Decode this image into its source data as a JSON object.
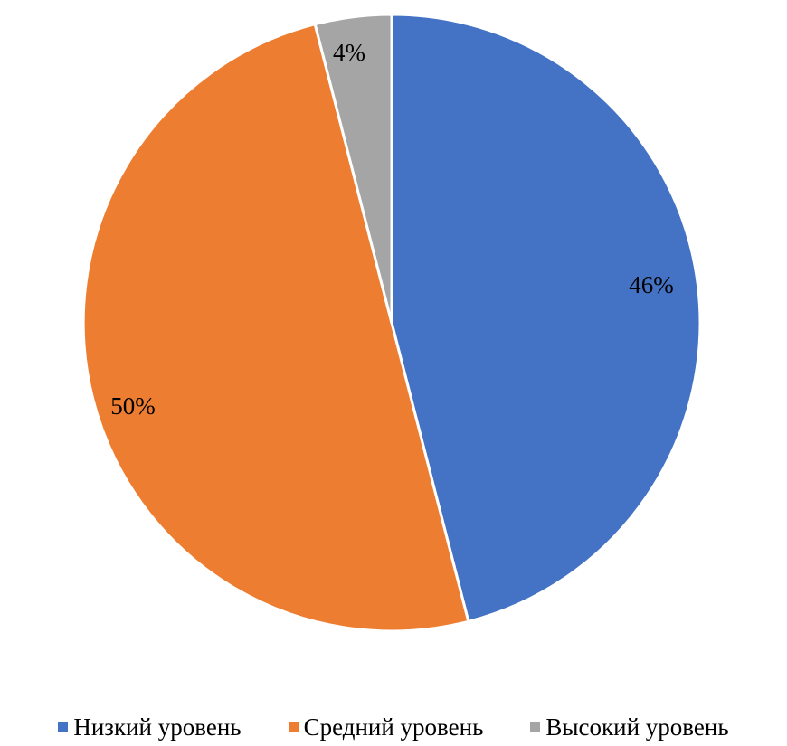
{
  "chart_data": {
    "type": "pie",
    "title": "",
    "categories": [
      "Низкий уровень",
      "Средний уровень",
      "Высокий уровень"
    ],
    "values": [
      46,
      50,
      4
    ],
    "labels": [
      "46%",
      "50%",
      "4%"
    ],
    "colors": [
      "#4472C4",
      "#ED7D31",
      "#A5A5A5"
    ],
    "start_angle": "12 o'clock",
    "direction": "clockwise",
    "legend": "bottom"
  }
}
